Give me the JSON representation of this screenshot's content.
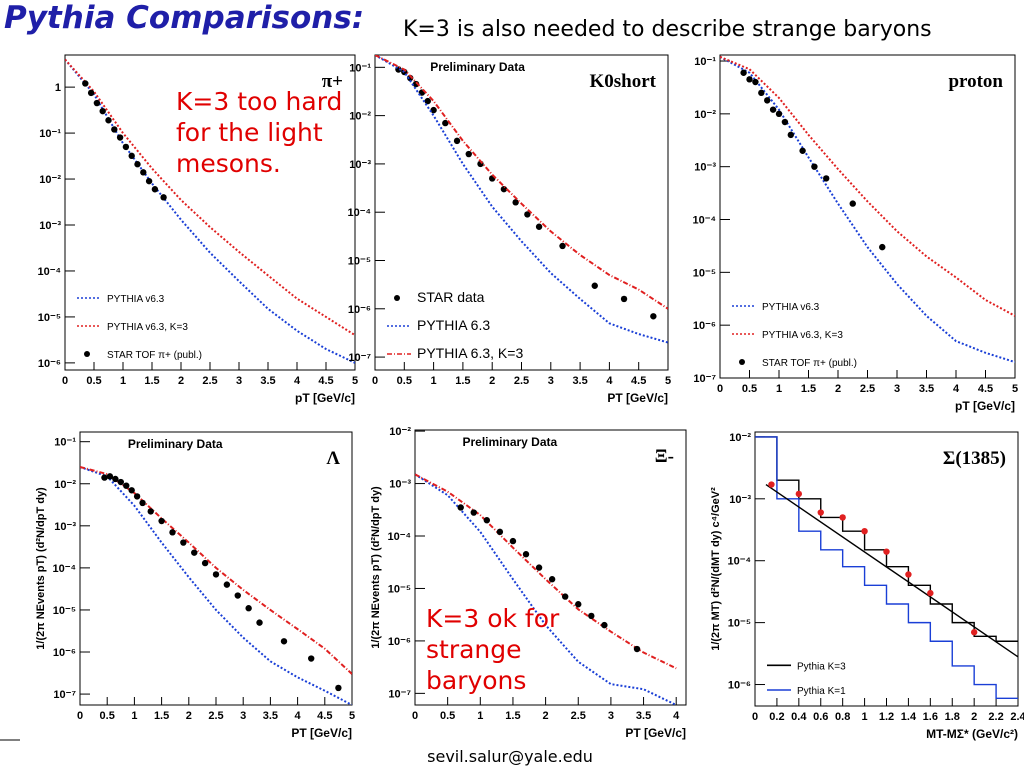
{
  "slide": {
    "title": "Pythia Comparisons:",
    "subtitle": "K=3 is also needed to describe strange baryons",
    "notes": [
      "K=3 too hard\nfor the light\nmesons.",
      "K=3 ok for\nstrange\nbaryons"
    ],
    "footer": "sevil.salur@yale.edu"
  },
  "chart_data": [
    {
      "type": "line",
      "label": "π+",
      "xlabel": "pT [GeV/c]",
      "ylog": true,
      "legend": "lower left",
      "xlim": [
        0,
        5
      ],
      "xticks": [
        0,
        0.5,
        1,
        1.5,
        2,
        2.5,
        3,
        3.5,
        4,
        4.5,
        5
      ],
      "ylim": [
        7e-07,
        5
      ],
      "yticks": [
        {
          "value": 1e-06,
          "label": "10⁻⁶"
        },
        {
          "value": 1e-05,
          "label": "10⁻⁵"
        },
        {
          "value": 0.0001,
          "label": "10⁻⁴"
        },
        {
          "value": 0.001,
          "label": "10⁻³"
        },
        {
          "value": 0.01,
          "label": "10⁻²"
        },
        {
          "value": 0.1,
          "label": "10⁻¹"
        },
        1
      ],
      "series": [
        {
          "name": "PYTHIA v6.3",
          "color": "#1a3fd6",
          "mode": "lines",
          "dash": "dotted",
          "x": [
            0,
            0.5,
            1,
            1.5,
            2,
            2.5,
            3,
            3.5,
            4,
            4.5,
            5
          ],
          "values": [
            4,
            0.7,
            0.06,
            0.008,
            0.0013,
            0.00025,
            6e-05,
            1.5e-05,
            5e-06,
            2e-06,
            1e-06
          ]
        },
        {
          "name": "PYTHIA v6.3, K=3",
          "color": "#e02020",
          "mode": "lines",
          "dash": "dotted",
          "x": [
            0,
            0.5,
            1,
            1.5,
            2,
            2.5,
            3,
            3.5,
            4,
            4.5,
            5
          ],
          "values": [
            4,
            0.8,
            0.1,
            0.017,
            0.0035,
            0.0009,
            0.00026,
            8e-05,
            2.5e-05,
            1e-05,
            4e-06
          ]
        },
        {
          "name": "STAR TOF π+ (publ.)",
          "color": "#000000",
          "mode": "markers",
          "x": [
            0.35,
            0.45,
            0.55,
            0.65,
            0.75,
            0.85,
            0.95,
            1.05,
            1.15,
            1.25,
            1.35,
            1.45,
            1.55,
            1.7
          ],
          "values": [
            1.2,
            0.75,
            0.45,
            0.3,
            0.19,
            0.12,
            0.08,
            0.05,
            0.032,
            0.021,
            0.014,
            0.009,
            0.006,
            0.004
          ]
        }
      ]
    },
    {
      "type": "line",
      "title": "Preliminary Data",
      "label": "K0short",
      "xlabel": "PT [GeV/c]",
      "ylog": true,
      "legend": "lower left",
      "xlim": [
        0,
        5
      ],
      "xticks": [
        0,
        0.5,
        1,
        1.5,
        2,
        2.5,
        3,
        3.5,
        4,
        4.5,
        5
      ],
      "ylim": [
        5.4e-08,
        0.18
      ],
      "yticks": [
        {
          "value": 1e-07,
          "label": "10⁻⁷"
        },
        {
          "value": 1e-06,
          "label": "10⁻⁶"
        },
        {
          "value": 1e-05,
          "label": "10⁻⁵"
        },
        {
          "value": 0.0001,
          "label": "10⁻⁴"
        },
        {
          "value": 0.001,
          "label": "10⁻³"
        },
        {
          "value": 0.01,
          "label": "10⁻²"
        },
        {
          "value": 0.1,
          "label": "10⁻¹"
        }
      ],
      "series": [
        {
          "name": "STAR data",
          "color": "#000000",
          "mode": "markers",
          "x": [
            0.4,
            0.5,
            0.6,
            0.7,
            0.8,
            0.9,
            1,
            1.2,
            1.4,
            1.6,
            1.8,
            2,
            2.2,
            2.4,
            2.6,
            2.8,
            3.2,
            3.75,
            4.25,
            4.75
          ],
          "values": [
            0.09,
            0.08,
            0.06,
            0.045,
            0.03,
            0.02,
            0.013,
            0.007,
            0.003,
            0.0016,
            0.001,
            0.0005,
            0.0003,
            0.00016,
            9e-05,
            5e-05,
            2e-05,
            3e-06,
            1.6e-06,
            7e-07
          ]
        },
        {
          "name": "PYTHIA 6.3",
          "color": "#1a3fd6",
          "mode": "lines",
          "dash": "dotted",
          "x": [
            0,
            0.5,
            1,
            1.5,
            2,
            2.5,
            3,
            3.5,
            4,
            4.5,
            5
          ],
          "values": [
            0.18,
            0.08,
            0.01,
            0.001,
            0.00013,
            2.5e-05,
            5.5e-06,
            1.6e-06,
            5e-07,
            3e-07,
            2e-07
          ]
        },
        {
          "name": "PYTHIA 6.3, K=3",
          "color": "#e02020",
          "mode": "lines",
          "dash": "dashdot",
          "x": [
            0,
            0.5,
            1,
            1.5,
            2,
            2.5,
            3,
            3.5,
            4,
            4.5,
            5
          ],
          "values": [
            0.18,
            0.09,
            0.02,
            0.003,
            0.0006,
            0.00015,
            4e-05,
            1.3e-05,
            5e-06,
            2.5e-06,
            1e-06
          ]
        }
      ]
    },
    {
      "type": "line",
      "label": "proton",
      "xlabel": "pT [GeV/c]",
      "ylog": true,
      "legend": "lower left",
      "xlim": [
        0,
        5
      ],
      "xticks": [
        0,
        0.5,
        1,
        1.5,
        2,
        2.5,
        3,
        3.5,
        4,
        4.5,
        5
      ],
      "ylim": [
        1e-07,
        0.13
      ],
      "yticks": [
        {
          "value": 1e-07,
          "label": "10⁻⁷"
        },
        {
          "value": 1e-06,
          "label": "10⁻⁶"
        },
        {
          "value": 1e-05,
          "label": "10⁻⁵"
        },
        {
          "value": 0.0001,
          "label": "10⁻⁴"
        },
        {
          "value": 0.001,
          "label": "10⁻³"
        },
        {
          "value": 0.01,
          "label": "10⁻²"
        },
        {
          "value": 0.1,
          "label": "10⁻¹"
        }
      ],
      "series": [
        {
          "name": "PYTHIA v6.3",
          "color": "#1a3fd6",
          "mode": "lines",
          "dash": "dotted",
          "x": [
            0,
            0.5,
            1,
            1.5,
            2,
            2.5,
            3,
            3.5,
            4,
            4.5,
            5
          ],
          "values": [
            0.12,
            0.06,
            0.012,
            0.0015,
            0.0002,
            3e-05,
            6e-06,
            1.5e-06,
            5e-07,
            3e-07,
            2e-07
          ]
        },
        {
          "name": "PYTHIA v6.3, K=3",
          "color": "#e02020",
          "mode": "lines",
          "dash": "dotted",
          "x": [
            0,
            0.5,
            1,
            1.5,
            2,
            2.5,
            3,
            3.5,
            4,
            4.5,
            5
          ],
          "values": [
            0.12,
            0.07,
            0.02,
            0.004,
            0.0009,
            0.00022,
            6e-05,
            2e-05,
            8e-06,
            3e-06,
            1.5e-06
          ]
        },
        {
          "name": "STAR TOF π+ (publ.)",
          "color": "#000000",
          "mode": "markers",
          "x": [
            0.4,
            0.5,
            0.6,
            0.7,
            0.8,
            0.9,
            1,
            1.1,
            1.2,
            1.4,
            1.6,
            1.8,
            2.25,
            2.75
          ],
          "values": [
            0.06,
            0.045,
            0.04,
            0.025,
            0.018,
            0.012,
            0.01,
            0.007,
            0.004,
            0.002,
            0.001,
            0.0006,
            0.0002,
            3e-05
          ]
        }
      ]
    },
    {
      "type": "line",
      "title": "Preliminary Data",
      "label": "Λ",
      "xlabel": "PT [GeV/c]",
      "ylabel": "1/(2π NEvents pT) (d²N/dpT dy)",
      "ylog": true,
      "xlim": [
        0,
        5
      ],
      "xticks": [
        0,
        0.5,
        1,
        1.5,
        2,
        2.5,
        3,
        3.5,
        4,
        4.5,
        5
      ],
      "ylim": [
        5.5e-08,
        0.17
      ],
      "yticks": [
        {
          "value": 1e-07,
          "label": "10⁻⁷"
        },
        {
          "value": 1e-06,
          "label": "10⁻⁶"
        },
        {
          "value": 1e-05,
          "label": "10⁻⁵"
        },
        {
          "value": 0.0001,
          "label": "10⁻⁴"
        },
        {
          "value": 0.001,
          "label": "10⁻³"
        },
        {
          "value": 0.01,
          "label": "10⁻²"
        },
        {
          "value": 0.1,
          "label": "10⁻¹"
        }
      ],
      "series": [
        {
          "color": "#1a3fd6",
          "mode": "lines",
          "dash": "dotted",
          "x": [
            0,
            0.5,
            1,
            1.5,
            2,
            2.5,
            3,
            3.5,
            4,
            4.5,
            5
          ],
          "values": [
            0.025,
            0.015,
            0.003,
            0.0004,
            6e-05,
            1e-05,
            2.2e-06,
            6e-07,
            2.5e-07,
            1.2e-07,
            5.5e-08
          ]
        },
        {
          "color": "#e02020",
          "mode": "lines",
          "dash": "dashdot",
          "x": [
            0,
            0.5,
            1,
            1.5,
            2,
            2.5,
            3,
            3.5,
            4,
            4.5,
            5
          ],
          "values": [
            0.025,
            0.017,
            0.006,
            0.0015,
            0.0004,
            0.0001,
            3e-05,
            1e-05,
            3.5e-06,
            1.2e-06,
            3e-07
          ]
        },
        {
          "color": "#000000",
          "mode": "markers",
          "x": [
            0.45,
            0.55,
            0.65,
            0.75,
            0.85,
            0.95,
            1.05,
            1.15,
            1.3,
            1.5,
            1.7,
            1.9,
            2.1,
            2.3,
            2.5,
            2.7,
            2.9,
            3.1,
            3.3,
            3.75,
            4.25,
            4.75
          ],
          "values": [
            0.014,
            0.015,
            0.013,
            0.011,
            0.009,
            0.007,
            0.005,
            0.0035,
            0.0022,
            0.0013,
            0.0007,
            0.0004,
            0.00023,
            0.00013,
            7e-05,
            4e-05,
            2.2e-05,
            1.1e-05,
            5e-06,
            1.8e-06,
            7e-07,
            1.4e-07
          ]
        }
      ]
    },
    {
      "type": "line",
      "title": "Preliminary Data",
      "label": "Ξ-",
      "xlabel": "PT [GeV/c]",
      "ylabel": "1/(2π NEvents pT) (d²N/dpT dy)",
      "ylog": true,
      "xlim": [
        0,
        4.15
      ],
      "xticks": [
        0,
        0.5,
        1,
        1.5,
        2,
        2.5,
        3,
        3.5,
        4
      ],
      "ylim": [
        6e-08,
        0.0105
      ],
      "yticks": [
        {
          "value": 1e-07,
          "label": "10⁻⁷"
        },
        {
          "value": 1e-06,
          "label": "10⁻⁶"
        },
        {
          "value": 1e-05,
          "label": "10⁻⁵"
        },
        {
          "value": 0.0001,
          "label": "10⁻⁴"
        },
        {
          "value": 0.001,
          "label": "10⁻³"
        },
        {
          "value": 0.01,
          "label": "10⁻²"
        }
      ],
      "series": [
        {
          "color": "#1a3fd6",
          "mode": "lines",
          "dash": "dotted",
          "x": [
            0,
            0.5,
            1,
            1.5,
            2,
            2.5,
            3,
            3.5,
            4
          ],
          "values": [
            0.0015,
            0.0006,
            0.00012,
            1.5e-05,
            2e-06,
            4e-07,
            1.5e-07,
            1.2e-07,
            6e-08
          ]
        },
        {
          "color": "#e02020",
          "mode": "lines",
          "dash": "dashdot",
          "x": [
            0,
            0.5,
            1,
            1.5,
            2,
            2.5,
            3,
            3.5,
            4
          ],
          "values": [
            0.0015,
            0.0007,
            0.00025,
            6e-05,
            1.5e-05,
            4e-06,
            1.5e-06,
            6e-07,
            3e-07
          ]
        },
        {
          "color": "#000000",
          "mode": "markers",
          "x": [
            0.7,
            0.9,
            1.1,
            1.3,
            1.5,
            1.7,
            1.9,
            2.1,
            2.3,
            2.5,
            2.7,
            2.9,
            3.4
          ],
          "values": [
            0.00035,
            0.00028,
            0.0002,
            0.00012,
            8e-05,
            4.5e-05,
            2.5e-05,
            1.5e-05,
            7e-06,
            5e-06,
            3e-06,
            2e-06,
            7e-07
          ]
        }
      ]
    },
    {
      "type": "line",
      "label": "Σ(1385)",
      "xlabel": "MT-MΣ* (GeV/c²)",
      "ylabel": "1/(2π MT) d²N/(dMT dy) c⁴/GeV²",
      "ylog": true,
      "legend": "lower left",
      "xlim": [
        0,
        2.4
      ],
      "xticks": [
        0,
        0.2,
        0.4,
        0.6,
        0.8,
        1,
        1.2,
        1.4,
        1.6,
        1.8,
        2,
        2.2,
        2.4
      ],
      "ylim": [
        4.5e-07,
        0.012
      ],
      "yticks": [
        {
          "value": 1e-06,
          "label": "10⁻⁶"
        },
        {
          "value": 1e-05,
          "label": "10⁻⁵"
        },
        {
          "value": 0.0001,
          "label": "10⁻⁴"
        },
        {
          "value": 0.001,
          "label": "10⁻³"
        },
        {
          "value": 0.01,
          "label": "10⁻²"
        }
      ],
      "series": [
        {
          "name": "Pythia K=3",
          "color": "#000000",
          "mode": "steps",
          "x": [
            0,
            0.2,
            0.4,
            0.6,
            0.8,
            1,
            1.2,
            1.4,
            1.6,
            1.8,
            2,
            2.2,
            2.4
          ],
          "values": [
            0.01,
            0.002,
            0.001,
            0.0005,
            0.0003,
            0.00015,
            8e-05,
            4e-05,
            2e-05,
            1e-05,
            6e-06,
            5e-06,
            5e-06
          ]
        },
        {
          "name": "Pythia K=1",
          "color": "#1a3fd6",
          "mode": "steps",
          "x": [
            0,
            0.2,
            0.4,
            0.6,
            0.8,
            1,
            1.2,
            1.4,
            1.6,
            1.8,
            2,
            2.2,
            2.4
          ],
          "values": [
            0.01,
            0.001,
            0.0003,
            0.00015,
            8e-05,
            4e-05,
            2e-05,
            1e-05,
            5e-06,
            2e-06,
            1e-06,
            6e-07,
            6e-07
          ]
        },
        {
          "color": "#000000",
          "mode": "lines",
          "x": [
            0.1,
            2.4
          ],
          "values": [
            0.0017,
            2.8e-06
          ]
        },
        {
          "color": "#e02020",
          "mode": "markers",
          "x": [
            0.15,
            0.4,
            0.6,
            0.8,
            1,
            1.2,
            1.4,
            1.6,
            2
          ],
          "values": [
            0.0017,
            0.0012,
            0.0006,
            0.0005,
            0.0003,
            0.00014,
            6e-05,
            3e-05,
            7e-06
          ]
        }
      ]
    }
  ]
}
